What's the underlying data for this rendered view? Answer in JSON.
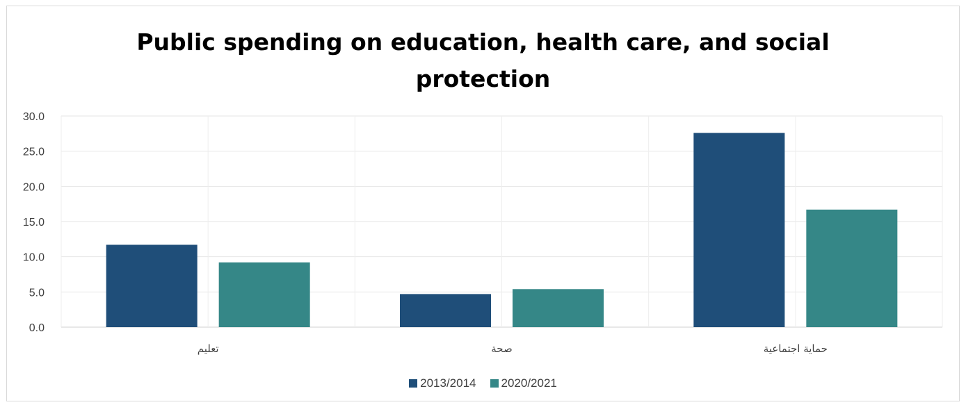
{
  "chart_data": {
    "type": "bar",
    "title_lines": [
      "Public spending on education, health care, and social",
      "protection"
    ],
    "categories": [
      "تعليم",
      "صحة",
      "حماية اجتماعية"
    ],
    "series": [
      {
        "name": "2013/2014",
        "values": [
          11.7,
          4.7,
          27.6
        ],
        "color": "#1f4e79"
      },
      {
        "name": "2020/2021",
        "values": [
          9.2,
          5.4,
          16.7
        ],
        "color": "#358787"
      }
    ],
    "ylim": [
      0,
      30
    ],
    "yticks": [
      "0.0",
      "5.0",
      "10.0",
      "15.0",
      "20.0",
      "25.0",
      "30.0"
    ],
    "grid": true,
    "legend_position": "bottom"
  }
}
